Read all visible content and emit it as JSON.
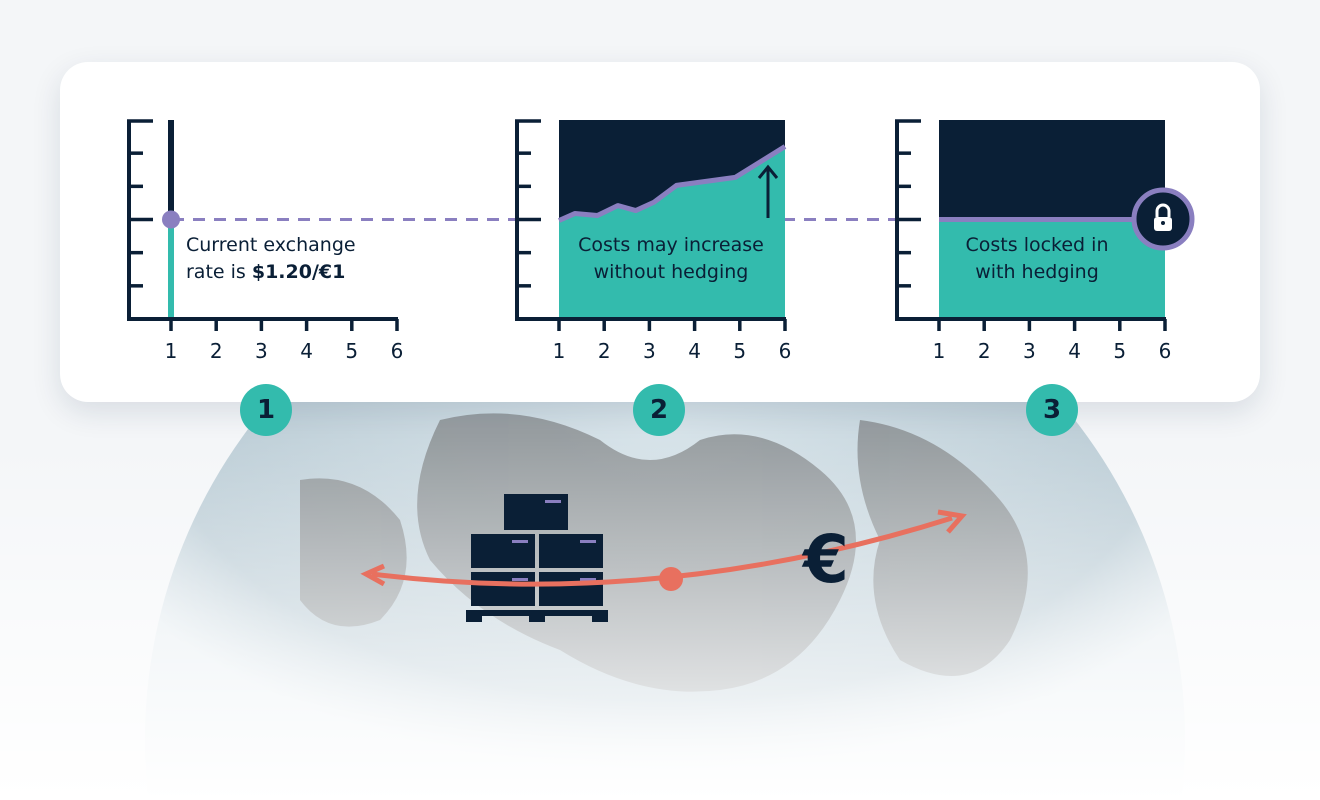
{
  "colors": {
    "navy": "#0a1f36",
    "teal": "#33bbad",
    "purple": "#8a7fc0",
    "coral": "#e8705f",
    "card": "#ffffff"
  },
  "chart_data": [
    {
      "type": "line",
      "x_ticks": [
        "1",
        "2",
        "3",
        "4",
        "5",
        "6"
      ],
      "y_tick_count": 6,
      "current_rate_level": 3,
      "annotation": {
        "line1": "Current exchange",
        "line2_prefix": "rate is ",
        "line2_bold": "$1.20/€1"
      }
    },
    {
      "type": "area",
      "x_ticks": [
        "1",
        "2",
        "3",
        "4",
        "5",
        "6"
      ],
      "y_tick_count": 6,
      "x": [
        1,
        1.35,
        1.85,
        2.3,
        2.7,
        3.1,
        3.6,
        4.9,
        6
      ],
      "y": [
        2.97,
        3.18,
        3.12,
        3.42,
        3.27,
        3.52,
        4.03,
        4.27,
        5.2
      ],
      "annotation": {
        "line1": "Costs may increase",
        "line2": "without hedging"
      },
      "arrow": "up-arrow-icon"
    },
    {
      "type": "area",
      "x_ticks": [
        "1",
        "2",
        "3",
        "4",
        "5",
        "6"
      ],
      "y_tick_count": 6,
      "x": [
        1,
        6
      ],
      "y": [
        3,
        3
      ],
      "annotation": {
        "line1": "Costs locked in",
        "line2": "with hedging"
      },
      "icon": "lock-icon"
    }
  ],
  "steps": [
    "1",
    "2",
    "3"
  ],
  "illustration": {
    "globe": "globe",
    "cargo": "pallet-boxes-icon",
    "currency_symbol": "€",
    "arrow": "curved-double-arrow"
  }
}
